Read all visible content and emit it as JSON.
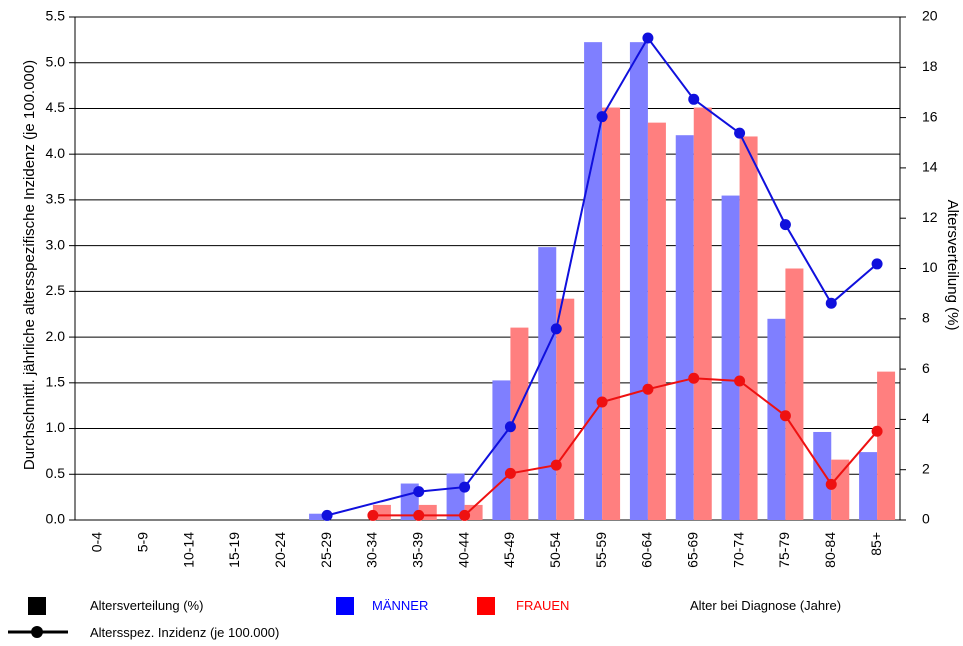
{
  "chart_data": {
    "type": "bar",
    "categories": [
      "0-4",
      "5-9",
      "10-14",
      "15-19",
      "20-24",
      "25-29",
      "30-34",
      "35-39",
      "40-44",
      "45-49",
      "50-54",
      "55-59",
      "60-64",
      "65-69",
      "70-74",
      "75-79",
      "80-84",
      "85+"
    ],
    "y_left": {
      "label": "Durchschnittl. jährliche altersspezifische Inzidenz (je 100.000)",
      "ticks": [
        "0.0",
        "0.5",
        "1.0",
        "1.5",
        "2.0",
        "2.5",
        "3.0",
        "3.5",
        "4.0",
        "4.5",
        "5.0",
        "5.5"
      ],
      "range": [
        0,
        5.5
      ]
    },
    "y_right": {
      "label": "Altersverteilung (%)",
      "ticks": [
        "0",
        "2",
        "4",
        "6",
        "8",
        "10",
        "12",
        "14",
        "16",
        "18",
        "20"
      ],
      "range": [
        0,
        20
      ]
    },
    "xlabel": "Alter bei Diagnose (Jahre)",
    "grid": "horizontal",
    "bar_series": [
      {
        "name": "MÄNNER",
        "color": "#7f7fff",
        "axis": "right",
        "values": [
          0,
          0,
          0,
          0,
          0,
          0.25,
          0,
          1.45,
          1.85,
          5.55,
          10.85,
          19.0,
          19.0,
          15.3,
          12.9,
          8.0,
          3.5,
          2.7
        ]
      },
      {
        "name": "FRAUEN",
        "color": "#ff7f7f",
        "axis": "right",
        "values": [
          0,
          0,
          0,
          0,
          0,
          0,
          0.6,
          0.6,
          0.6,
          7.65,
          8.8,
          16.4,
          15.8,
          16.4,
          15.25,
          10.0,
          2.4,
          5.9
        ]
      }
    ],
    "line_series": [
      {
        "name": "MÄNNER",
        "color": "#1010dd",
        "axis": "left",
        "values": [
          null,
          null,
          null,
          null,
          null,
          0.05,
          null,
          0.31,
          0.36,
          1.02,
          2.09,
          4.41,
          5.27,
          4.6,
          4.23,
          3.23,
          2.37,
          2.8
        ]
      },
      {
        "name": "FRAUEN",
        "color": "#ee1111",
        "axis": "left",
        "values": [
          null,
          null,
          null,
          null,
          null,
          null,
          0.05,
          0.05,
          0.05,
          0.51,
          0.6,
          1.29,
          1.43,
          1.55,
          1.52,
          1.14,
          0.39,
          0.97
        ]
      }
    ],
    "legend": {
      "bar_item": "Altersverteilung (%)",
      "line_item": "Altersspez. Inzidenz (je 100.000)",
      "men": "MÄNNER",
      "women": "FRAUEN",
      "men_color": "#0000ff",
      "women_color": "#ff0000"
    }
  }
}
